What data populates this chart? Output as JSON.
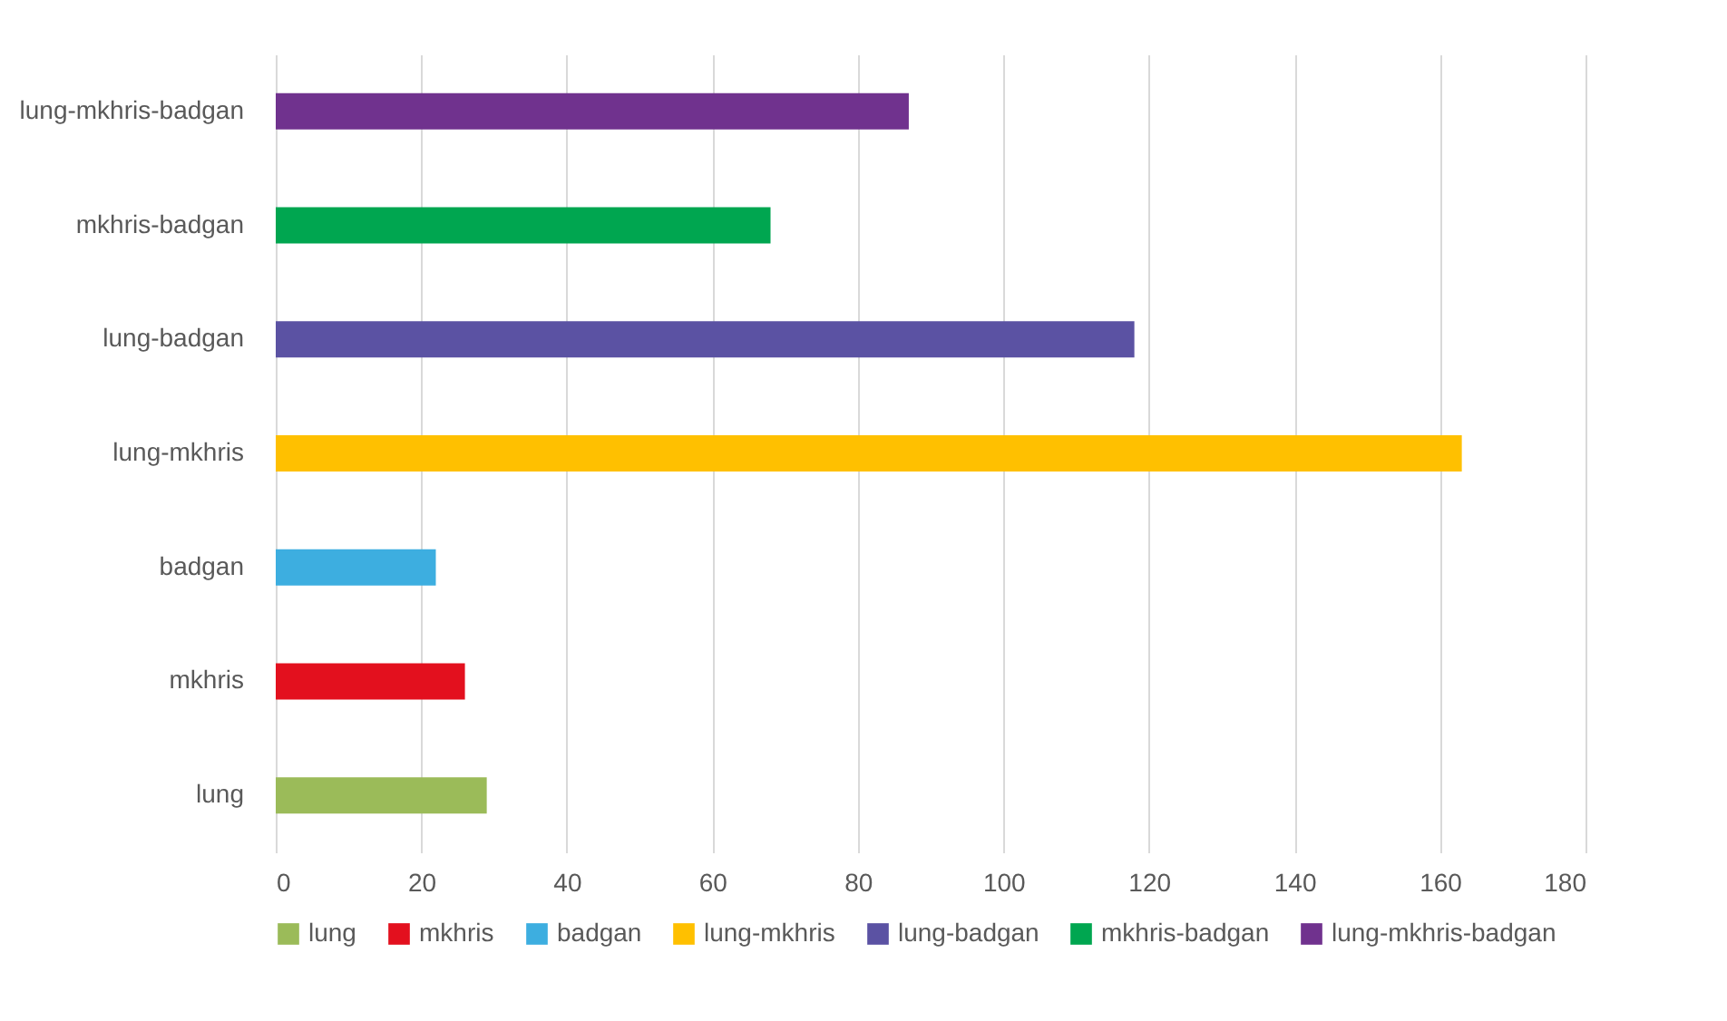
{
  "chart_data": {
    "type": "bar",
    "orientation": "horizontal",
    "categories": [
      "lung-mkhris-badgan",
      "mkhris-badgan",
      "lung-badgan",
      "lung-mkhris",
      "badgan",
      "mkhris",
      "lung"
    ],
    "series": [
      {
        "name": "lung",
        "color": "#9bbb59",
        "values": [
          null,
          null,
          null,
          null,
          null,
          null,
          29
        ]
      },
      {
        "name": "mkhris",
        "color": "#e3101e",
        "values": [
          null,
          null,
          null,
          null,
          null,
          26,
          null
        ]
      },
      {
        "name": "badgan",
        "color": "#3daee0",
        "values": [
          null,
          null,
          null,
          null,
          22,
          null,
          null
        ]
      },
      {
        "name": "lung-mkhris",
        "color": "#ffc000",
        "values": [
          null,
          null,
          null,
          163,
          null,
          null,
          null
        ]
      },
      {
        "name": "lung-badgan",
        "color": "#5b52a3",
        "values": [
          null,
          null,
          118,
          null,
          null,
          null,
          null
        ]
      },
      {
        "name": "mkhris-badgan",
        "color": "#00a650",
        "values": [
          null,
          68,
          null,
          null,
          null,
          null,
          null
        ]
      },
      {
        "name": "lung-mkhris-badgan",
        "color": "#70328e",
        "values": [
          87,
          null,
          null,
          null,
          null,
          null,
          null
        ]
      }
    ],
    "xlim": [
      0,
      180
    ],
    "xticks": [
      0,
      20,
      40,
      60,
      80,
      100,
      120,
      140,
      160,
      180
    ],
    "grid": "x",
    "legend": "bottom"
  }
}
